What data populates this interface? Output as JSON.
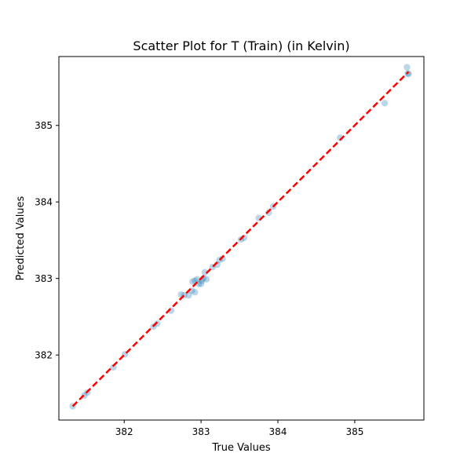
{
  "chart_data": {
    "type": "scatter",
    "title": "Scatter Plot for T (Train) (in Kelvin)",
    "xlabel": "True Values",
    "ylabel": "Predicted Values",
    "xlim": [
      381.15,
      385.9
    ],
    "ylim": [
      381.15,
      385.9
    ],
    "xticks": [
      382,
      383,
      384,
      385
    ],
    "yticks": [
      382,
      383,
      384,
      385
    ],
    "grid": false,
    "legend": "none",
    "point_color": "#1f77b4",
    "point_opacity": 0.3,
    "line_color": "#ff0000",
    "ideal_line": {
      "x": [
        381.33,
        385.7
      ],
      "y": [
        381.33,
        385.7
      ]
    },
    "points": [
      {
        "x": 381.33,
        "y": 381.33
      },
      {
        "x": 381.48,
        "y": 381.47
      },
      {
        "x": 381.52,
        "y": 381.51
      },
      {
        "x": 381.86,
        "y": 381.84
      },
      {
        "x": 382.01,
        "y": 382.01
      },
      {
        "x": 382.38,
        "y": 382.37
      },
      {
        "x": 382.43,
        "y": 382.41
      },
      {
        "x": 382.61,
        "y": 382.58
      },
      {
        "x": 382.74,
        "y": 382.79
      },
      {
        "x": 382.78,
        "y": 382.78
      },
      {
        "x": 382.84,
        "y": 382.78
      },
      {
        "x": 382.88,
        "y": 382.84
      },
      {
        "x": 382.92,
        "y": 382.82
      },
      {
        "x": 382.89,
        "y": 382.96
      },
      {
        "x": 382.92,
        "y": 382.97
      },
      {
        "x": 382.95,
        "y": 382.99
      },
      {
        "x": 382.97,
        "y": 382.93
      },
      {
        "x": 383.0,
        "y": 382.93
      },
      {
        "x": 383.01,
        "y": 382.97
      },
      {
        "x": 383.03,
        "y": 383.0
      },
      {
        "x": 383.05,
        "y": 383.08
      },
      {
        "x": 383.07,
        "y": 382.99
      },
      {
        "x": 383.15,
        "y": 383.15
      },
      {
        "x": 383.21,
        "y": 383.18
      },
      {
        "x": 383.24,
        "y": 383.24
      },
      {
        "x": 383.28,
        "y": 383.26
      },
      {
        "x": 383.52,
        "y": 383.51
      },
      {
        "x": 383.56,
        "y": 383.53
      },
      {
        "x": 383.75,
        "y": 383.79
      },
      {
        "x": 383.88,
        "y": 383.86
      },
      {
        "x": 383.94,
        "y": 383.94
      },
      {
        "x": 384.81,
        "y": 384.84
      },
      {
        "x": 385.39,
        "y": 385.29
      },
      {
        "x": 385.68,
        "y": 385.76
      },
      {
        "x": 385.69,
        "y": 385.68
      },
      {
        "x": 385.7,
        "y": 385.67
      }
    ]
  }
}
